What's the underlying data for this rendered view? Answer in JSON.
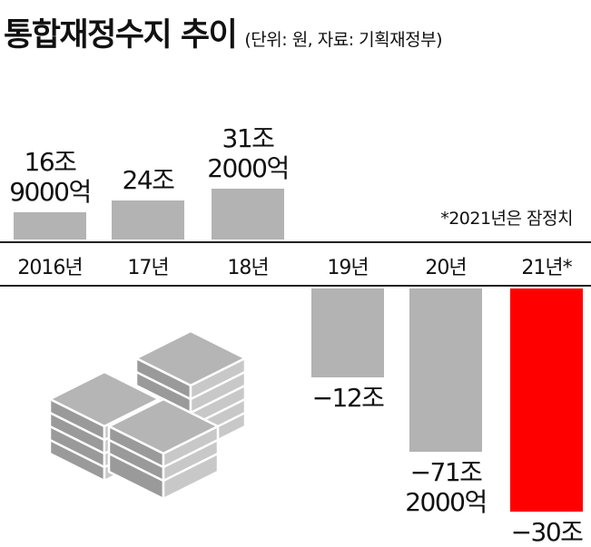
{
  "chart_data": {
    "type": "bar",
    "title": "통합재정수지 추이",
    "subtitle": "(단위: 원, 자료: 기획재정부)",
    "note": "*2021년은 잠정치",
    "categories": [
      "2016년",
      "17년",
      "18년",
      "19년",
      "20년",
      "21년*"
    ],
    "values": [
      16.9,
      24,
      31.2,
      -12,
      -71.2,
      -30
    ],
    "value_labels": [
      [
        "16조",
        "9000억"
      ],
      [
        "24조"
      ],
      [
        "31조",
        "2000억"
      ],
      [
        "−12조"
      ],
      [
        "−71조",
        "2000억"
      ],
      [
        "−30조"
      ]
    ],
    "unit": "조 원",
    "axis_break": "20년",
    "colors": {
      "positive": "#b3b3b3",
      "negative": "#b3b3b3",
      "highlight": "#ff0000",
      "text": "#111111"
    },
    "highlight_category": "21년*",
    "grid": false,
    "legend": "none",
    "decoration": "money-stack-icon"
  }
}
